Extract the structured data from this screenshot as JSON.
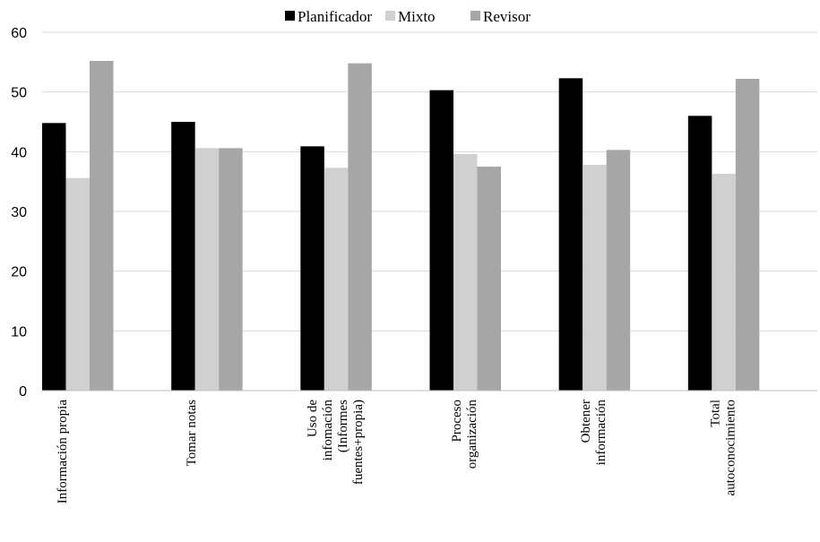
{
  "chart_data": {
    "type": "bar",
    "title": "",
    "xlabel": "",
    "ylabel": "",
    "ylim": [
      0,
      60
    ],
    "yticks": [
      0,
      10,
      20,
      30,
      40,
      50,
      60
    ],
    "grid": true,
    "legend_position": "top",
    "categories": [
      [
        "Información propia"
      ],
      [
        "Tomar notas"
      ],
      [
        "Uso de",
        "infomación",
        "(Informes",
        "fuentes+propia)"
      ],
      [
        "Proceso",
        "organización"
      ],
      [
        "Obtener",
        "información"
      ],
      [
        "Total",
        "autoconocimiento"
      ]
    ],
    "series": [
      {
        "name": "Planificador",
        "color": "#000000",
        "values": [
          44.8,
          45.0,
          40.9,
          50.3,
          52.3,
          46.0
        ]
      },
      {
        "name": "Mixto",
        "color": "#d0d0d0",
        "values": [
          35.6,
          40.6,
          37.3,
          39.6,
          37.8,
          36.3
        ]
      },
      {
        "name": "Revisor",
        "color": "#a6a6a6",
        "values": [
          55.2,
          40.6,
          54.8,
          37.5,
          40.3,
          52.2
        ]
      }
    ]
  }
}
